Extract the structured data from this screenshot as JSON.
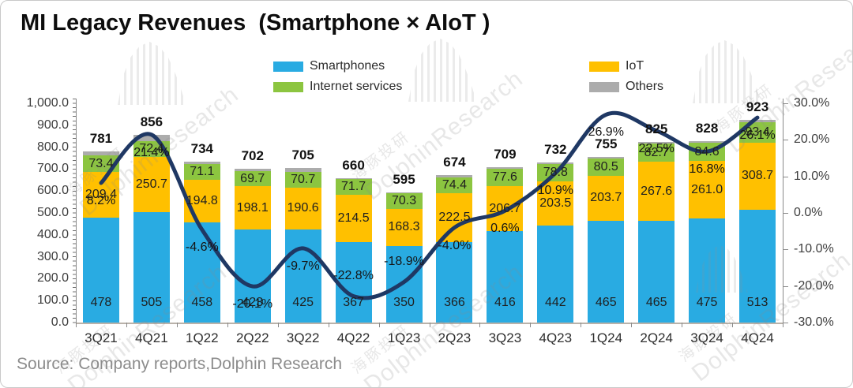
{
  "page": {
    "source": "Source: Company reports,Dolphin Research",
    "watermark": {
      "cn": "海豚投研",
      "en": "DolphinResearch"
    }
  },
  "legend": {
    "items": [
      {
        "label": "Smartphones",
        "color": "#29ABE2"
      },
      {
        "label": "IoT",
        "color": "#FFC000"
      },
      {
        "label": "Internet services",
        "color": "#8CC540"
      },
      {
        "label": "Others",
        "color": "#ACACAC"
      }
    ]
  },
  "chart_data": {
    "type": "bar",
    "subtype": "stacked-bar-with-yoy-line",
    "title": "MI Legacy Revenues  (Smartphone × AIoT )",
    "categories": [
      "3Q21",
      "4Q21",
      "1Q22",
      "2Q22",
      "3Q22",
      "4Q22",
      "1Q23",
      "2Q23",
      "3Q23",
      "4Q23",
      "1Q24",
      "2Q24",
      "3Q24",
      "4Q24"
    ],
    "series": [
      {
        "name": "Smartphones",
        "color": "#29ABE2",
        "values": [
          478,
          505,
          458,
          423,
          425,
          367,
          350,
          366,
          416,
          442,
          465,
          465,
          475,
          513
        ]
      },
      {
        "name": "IoT",
        "color": "#FFC000",
        "values": [
          209.4,
          250.7,
          194.8,
          198.1,
          190.6,
          214.5,
          168.3,
          222.5,
          206.7,
          203.5,
          203.7,
          267.6,
          261.0,
          308.7
        ]
      },
      {
        "name": "Internet services",
        "color": "#8CC540",
        "values": [
          73.4,
          72.4,
          71.1,
          69.7,
          70.7,
          71.7,
          70.3,
          74.4,
          77.6,
          78.8,
          80.5,
          82.7,
          84.6,
          93.4
        ]
      },
      {
        "name": "Others",
        "color": "#ACACAC",
        "labels_shown": false,
        "values": [
          20.2,
          27.9,
          10.1,
          11.2,
          18.7,
          6.8,
          6.4,
          11.1,
          8.7,
          7.7,
          5.8,
          9.7,
          7.4,
          7.9
        ]
      }
    ],
    "totals": [
      781,
      856,
      734,
      702,
      705,
      660,
      595,
      674,
      709,
      732,
      755,
      825,
      828,
      923
    ],
    "line_series": {
      "name": "YoY growth",
      "color": "#1F3864",
      "values_pct": [
        8.2,
        21.4,
        -4.6,
        -20.1,
        -9.7,
        -22.8,
        -18.9,
        -4.0,
        0.6,
        10.9,
        26.9,
        22.5,
        16.8,
        26.1
      ],
      "labels": [
        "8.2%",
        "21.4%",
        "-4.6%",
        "-20.1%",
        "-9.7%",
        "-22.8%",
        "-18.9%",
        "-4.0%",
        "0.6%",
        "10.9%",
        "26.9%",
        "22.5%",
        "16.8%",
        "26.1%"
      ],
      "label_above_indices": [
        5,
        6
      ]
    },
    "left_axis": {
      "min": 0,
      "max": 1000,
      "tick_labels": [
        "1,000.0",
        "900.0",
        "800.0",
        "700.0",
        "600.0",
        "500.0",
        "400.0",
        "300.0",
        "200.0",
        "100.0",
        "0.0"
      ]
    },
    "right_axis": {
      "min": -30,
      "max": 30,
      "tick_labels": [
        "30.0%",
        "20.0%",
        "10.0%",
        "0.0%",
        "-10.0%",
        "-20.0%",
        "-30.0%"
      ]
    },
    "grid": "off",
    "legend_position": "top-center, two columns"
  }
}
